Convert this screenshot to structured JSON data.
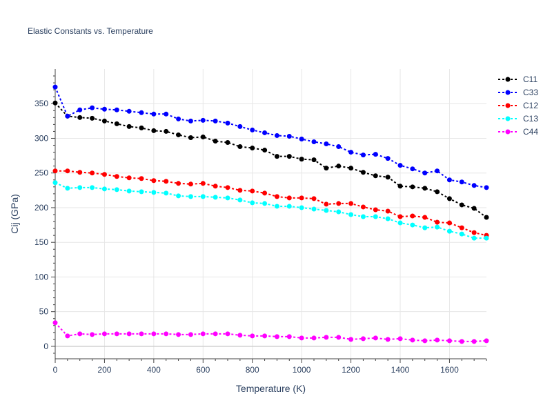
{
  "chart_data": {
    "type": "line",
    "title": "Elastic Constants vs. Temperature",
    "xlabel": "Temperature (K)",
    "ylabel": "Cij (GPa)",
    "xlim": [
      0,
      1750
    ],
    "ylim": [
      -18,
      400
    ],
    "x_ticks": [
      0,
      200,
      400,
      600,
      800,
      1000,
      1200,
      1400,
      1600
    ],
    "y_ticks": [
      0,
      50,
      100,
      150,
      200,
      250,
      300,
      350
    ],
    "grid": true,
    "legend_position": "top-right",
    "line_style": "dotted",
    "x": [
      0,
      50,
      100,
      150,
      200,
      250,
      300,
      350,
      400,
      450,
      500,
      550,
      600,
      650,
      700,
      750,
      800,
      850,
      900,
      950,
      1000,
      1050,
      1100,
      1150,
      1200,
      1250,
      1300,
      1350,
      1400,
      1450,
      1500,
      1550,
      1600,
      1650,
      1700,
      1750
    ],
    "series": [
      {
        "name": "C11",
        "color": "#000000",
        "values": [
          351,
          332,
          330,
          329,
          325,
          321,
          317,
          315,
          311,
          310,
          305,
          301,
          302,
          296,
          294,
          288,
          286,
          283,
          274,
          274,
          270,
          269,
          257,
          260,
          257,
          251,
          246,
          244,
          231,
          230,
          228,
          223,
          213,
          204,
          199,
          186
        ]
      },
      {
        "name": "C33",
        "color": "#0000ff",
        "values": [
          374,
          332,
          341,
          344,
          342,
          341,
          339,
          337,
          335,
          335,
          328,
          325,
          326,
          325,
          322,
          317,
          312,
          308,
          304,
          303,
          299,
          295,
          292,
          288,
          280,
          276,
          277,
          271,
          261,
          256,
          250,
          253,
          240,
          237,
          232,
          229
        ]
      },
      {
        "name": "C12",
        "color": "#ff0000",
        "values": [
          253,
          253,
          251,
          250,
          248,
          245,
          243,
          242,
          239,
          238,
          235,
          234,
          235,
          231,
          229,
          225,
          224,
          221,
          216,
          214,
          214,
          213,
          205,
          206,
          206,
          201,
          197,
          195,
          187,
          188,
          186,
          179,
          178,
          171,
          164,
          160
        ]
      },
      {
        "name": "C13",
        "color": "#00ffff",
        "values": [
          236,
          228,
          229,
          229,
          227,
          226,
          224,
          223,
          222,
          221,
          217,
          216,
          216,
          215,
          214,
          211,
          207,
          206,
          202,
          202,
          200,
          198,
          196,
          194,
          190,
          187,
          187,
          184,
          178,
          175,
          171,
          172,
          166,
          162,
          156,
          156
        ]
      },
      {
        "name": "C44",
        "color": "#ff00ff",
        "values": [
          34,
          15,
          18,
          17,
          18,
          18,
          18,
          18,
          18,
          18,
          17,
          17,
          18,
          18,
          18,
          16,
          15,
          15,
          14,
          14,
          12,
          12,
          13,
          13,
          10,
          11,
          12,
          10,
          11,
          9,
          8,
          9,
          8,
          7,
          7,
          8
        ]
      }
    ]
  }
}
